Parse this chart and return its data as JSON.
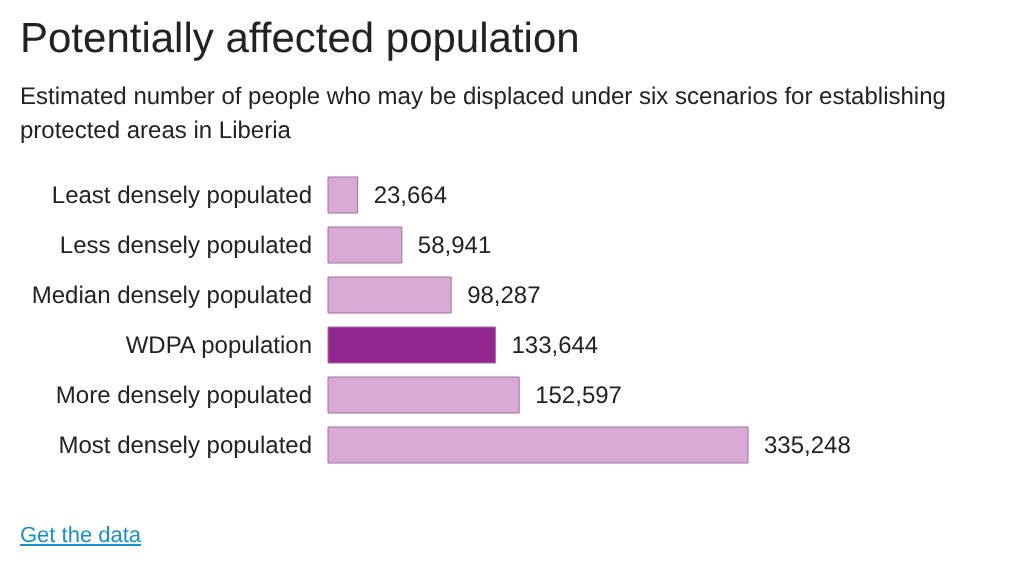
{
  "chart_data": {
    "type": "bar",
    "orientation": "horizontal",
    "title": "Potentially affected population",
    "subtitle": "Estimated number of people who may be displaced under six scenarios for establishing protected areas in Liberia",
    "categories": [
      "Least densely populated",
      "Less densely populated",
      "Median densely populated",
      "WDPA population",
      "More densely populated",
      "Most densely populated"
    ],
    "values": [
      23664,
      58941,
      98287,
      133644,
      152597,
      335248
    ],
    "colors": [
      "#d8aad4",
      "#d8aad4",
      "#d8aad4",
      "#93278f",
      "#d8aad4",
      "#d8aad4"
    ],
    "value_labels": [
      "23,664",
      "58,941",
      "98,287",
      "133,644",
      "152,597",
      "335,248"
    ],
    "annotations": [
      "Get the data"
    ]
  }
}
